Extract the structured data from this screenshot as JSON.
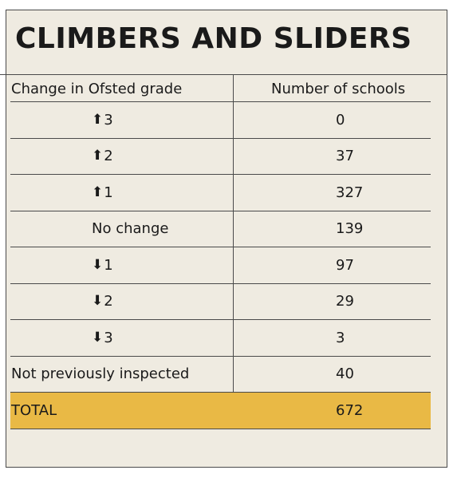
{
  "title": "CLIMBERS AND SLIDERS",
  "columns": [
    "Change in Ofsted grade",
    "Number of schools"
  ],
  "rows": [
    {
      "arrow": "up",
      "arrow_glyph": "⬆",
      "label": "3",
      "value": "0"
    },
    {
      "arrow": "up",
      "arrow_glyph": "⬆",
      "label": "2",
      "value": "37"
    },
    {
      "arrow": "up",
      "arrow_glyph": "⬆",
      "label": "1",
      "value": "327"
    },
    {
      "arrow": "",
      "arrow_glyph": "",
      "label": "No change",
      "value": "139"
    },
    {
      "arrow": "down",
      "arrow_glyph": "⬇",
      "label": "1",
      "value": "97"
    },
    {
      "arrow": "down",
      "arrow_glyph": "⬇",
      "label": "2",
      "value": "29"
    },
    {
      "arrow": "down",
      "arrow_glyph": "⬇",
      "label": "3",
      "value": "3"
    },
    {
      "arrow": "",
      "arrow_glyph": "",
      "label": "Not previously inspected",
      "value": "40"
    }
  ],
  "total": {
    "label": "TOTAL",
    "value": "672"
  },
  "colors": {
    "background": "#efebe1",
    "total_highlight": "#e9b945",
    "rule": "#4a4a4a",
    "text": "#1a1a1a"
  }
}
